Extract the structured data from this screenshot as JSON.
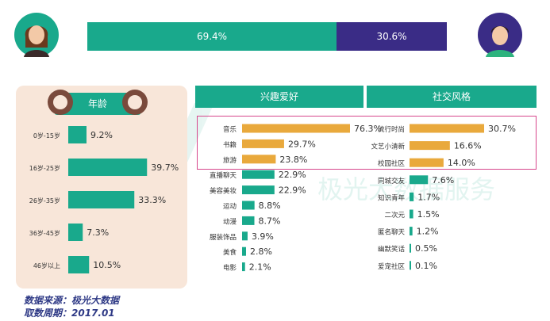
{
  "gender": {
    "female_pct": "69.4%",
    "male_pct": "30.6%",
    "female_value": 69.4,
    "male_value": 30.6,
    "female_color": "#19a98c",
    "male_color": "#3a2c86"
  },
  "watermark": "极光大数据服务",
  "age_panel": {
    "title": "年龄"
  },
  "interest_panel": {
    "title": "兴趣爱好"
  },
  "social_panel": {
    "title": "社交风格"
  },
  "footer": {
    "source": "数据来源：极光大数据",
    "period": "取数周期：2017.01"
  },
  "colors": {
    "teal": "#19a98c",
    "orange": "#e9a93c",
    "highlight": "#d7468c"
  },
  "chart_data": [
    {
      "type": "bar",
      "id": "age",
      "categories": [
        "0岁-15岁",
        "16岁-25岁",
        "26岁-35岁",
        "36岁-45岁",
        "46岁以上"
      ],
      "values": [
        9.2,
        39.7,
        33.3,
        7.3,
        10.5
      ],
      "labels": [
        "9.2%",
        "39.7%",
        "33.3%",
        "7.3%",
        "10.5%"
      ]
    },
    {
      "type": "bar",
      "id": "interest",
      "categories": [
        "音乐",
        "书籍",
        "旅游",
        "直播聊天",
        "美容美妆",
        "运动",
        "动漫",
        "服装饰品",
        "美食",
        "电影"
      ],
      "values": [
        76.3,
        29.7,
        23.8,
        22.9,
        22.9,
        8.8,
        8.7,
        3.9,
        2.8,
        2.1
      ],
      "labels": [
        "76.3%",
        "29.7%",
        "23.8%",
        "22.9%",
        "22.9%",
        "8.8%",
        "8.7%",
        "3.9%",
        "2.8%",
        "2.1%"
      ],
      "highlight_first": 1
    },
    {
      "type": "bar",
      "id": "social",
      "categories": [
        "流行时尚",
        "文艺小清新",
        "校园社区",
        "同城交友",
        "知识青年",
        "二次元",
        "匿名聊天",
        "幽默笑话",
        "爱宠社区"
      ],
      "values": [
        30.7,
        16.6,
        14.0,
        7.6,
        1.7,
        1.5,
        1.2,
        0.5,
        0.1
      ],
      "labels": [
        "30.7%",
        "16.6%",
        "14.0%",
        "7.6%",
        "1.7%",
        "1.5%",
        "1.2%",
        "0.5%",
        "0.1%"
      ],
      "highlight_first": 1
    }
  ]
}
